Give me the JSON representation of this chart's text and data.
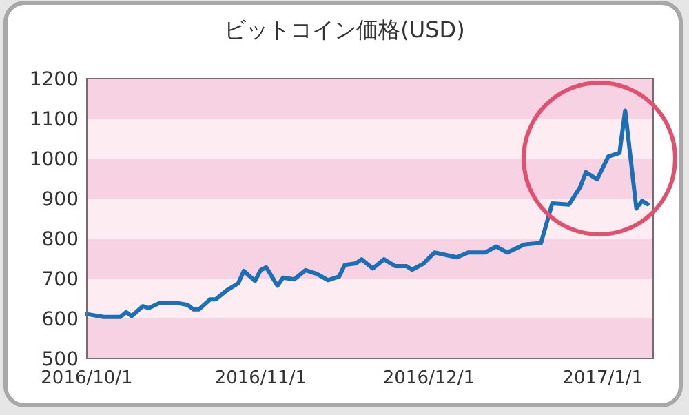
{
  "chart_data": {
    "type": "line",
    "title": "ビットコイン価格(USD)",
    "x": [
      "2016-10-01",
      "2016-10-04",
      "2016-10-07",
      "2016-10-08",
      "2016-10-09",
      "2016-10-11",
      "2016-10-12",
      "2016-10-14",
      "2016-10-17",
      "2016-10-19",
      "2016-10-20",
      "2016-10-21",
      "2016-10-23",
      "2016-10-24",
      "2016-10-26",
      "2016-10-28",
      "2016-10-29",
      "2016-10-31",
      "2016-11-01",
      "2016-11-02",
      "2016-11-04",
      "2016-11-05",
      "2016-11-07",
      "2016-11-09",
      "2016-11-11",
      "2016-11-13",
      "2016-11-15",
      "2016-11-16",
      "2016-11-18",
      "2016-11-19",
      "2016-11-21",
      "2016-11-23",
      "2016-11-25",
      "2016-11-27",
      "2016-11-28",
      "2016-11-30",
      "2016-12-02",
      "2016-12-06",
      "2016-12-08",
      "2016-12-11",
      "2016-12-13",
      "2016-12-15",
      "2016-12-18",
      "2016-12-21",
      "2016-12-23",
      "2016-12-26",
      "2016-12-28",
      "2016-12-29",
      "2016-12-31",
      "2017-01-02",
      "2017-01-04",
      "2017-01-05",
      "2017-01-07",
      "2017-01-08",
      "2017-01-09"
    ],
    "series": [
      {
        "color": "#1a6fb5",
        "values": [
          611,
          604,
          604,
          616,
          606,
          631,
          626,
          639,
          639,
          634,
          623,
          623,
          648,
          648,
          671,
          688,
          719,
          694,
          721,
          728,
          682,
          702,
          698,
          721,
          712,
          696,
          705,
          734,
          738,
          748,
          725,
          748,
          731,
          731,
          722,
          737,
          765,
          753,
          765,
          765,
          780,
          765,
          785,
          789,
          888,
          885,
          929,
          966,
          948,
          1005,
          1014,
          1120,
          875,
          894,
          886
        ]
      }
    ],
    "xlim": [
      "2016-10-01",
      "2017-01-10"
    ],
    "xticks": [
      {
        "value": "2016-10-01",
        "label": "2016/10/1"
      },
      {
        "value": "2016-11-01",
        "label": "2016/11/1"
      },
      {
        "value": "2016-12-01",
        "label": "2016/12/1"
      },
      {
        "value": "2017-01-01",
        "label": "2017/1/1"
      }
    ],
    "ylim": [
      500,
      1200
    ],
    "yticks": [
      500,
      600,
      700,
      800,
      900,
      1000,
      1100,
      1200
    ],
    "marker": "none",
    "line_style": "solid"
  }
}
